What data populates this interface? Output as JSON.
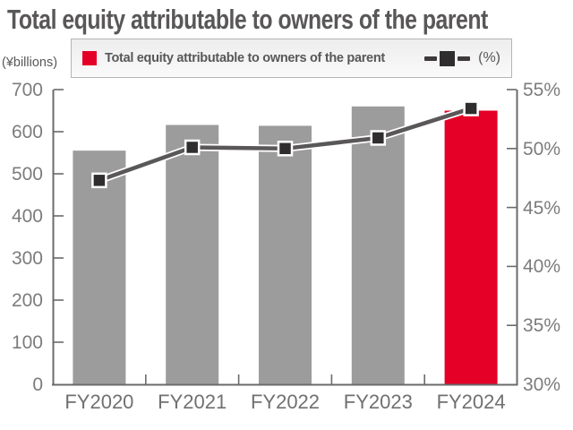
{
  "title": "Total equity attributable to owners of the parent",
  "legend": {
    "bar_label": "Total equity attributable to owners of the parent",
    "line_label": "(%)"
  },
  "left_axis_unit": "(¥billions)",
  "colors": {
    "bar": "#9c9c9d",
    "bar_highlight": "#e50027",
    "line": "#595757",
    "line_casing": "#ffffff",
    "marker_fill": "#2f2d2d",
    "marker_stroke": "#ffffff",
    "axis_line": "#6b6b6b",
    "axis_text": "#7d7c7c",
    "title_text": "#595757"
  },
  "chart_data": {
    "type": "bar",
    "subtype": "bar+line combo, dual axis",
    "title": "Total equity attributable to owners of the parent",
    "categories": [
      "FY2020",
      "FY2021",
      "FY2022",
      "FY2023",
      "FY2024"
    ],
    "series": [
      {
        "name": "Total equity attributable to owners of the parent",
        "type": "bar",
        "axis": "left",
        "unit": "¥billions",
        "values": [
          555,
          616,
          614,
          660,
          650
        ],
        "highlight_index": 4
      },
      {
        "name": "(%)",
        "type": "line",
        "axis": "right",
        "unit": "%",
        "values": [
          47.3,
          50.1,
          50.0,
          50.9,
          53.4
        ]
      }
    ],
    "left_axis": {
      "label": "(¥billions)",
      "min": 0,
      "max": 700,
      "step": 100
    },
    "right_axis": {
      "label": "(%)",
      "min": 30,
      "max": 55,
      "step": 5,
      "tick_suffix": "%"
    },
    "grid": false,
    "legend_position": "top"
  }
}
